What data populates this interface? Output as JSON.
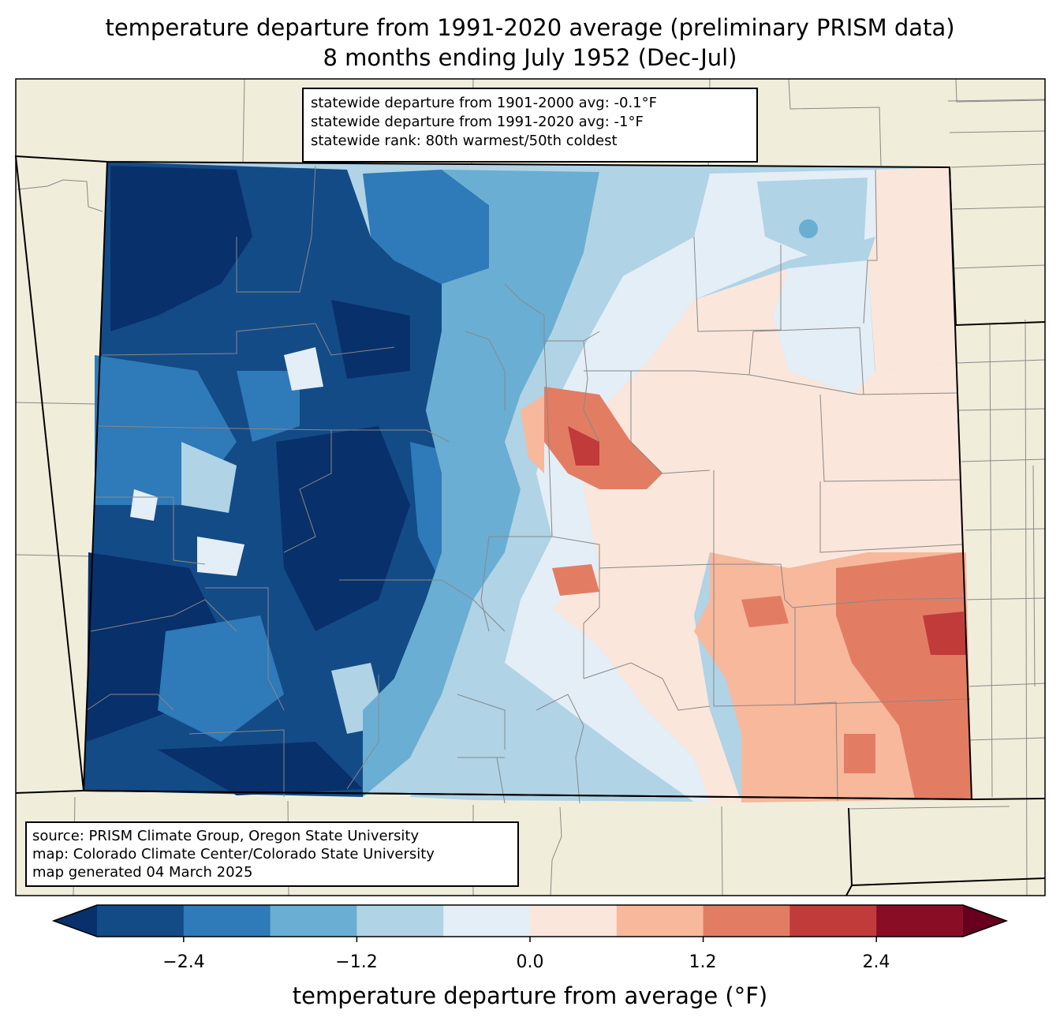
{
  "title": {
    "line1": "temperature departure from 1991-2020 average (preliminary PRISM data)",
    "line2": "8 months ending July 1952 (Dec-Jul)"
  },
  "stats": {
    "line1": "statewide departure from 1901-2000 avg: -0.1°F",
    "line2": "statewide departure from 1991-2020 avg: -1°F",
    "line3": "statewide rank: 80th warmest/50th coldest"
  },
  "source": {
    "line1": "source: PRISM Climate Group, Oregon State University",
    "line2": "map: Colorado Climate Center/Colorado State University",
    "line3": "map generated 04 March 2025"
  },
  "colorbar": {
    "label": "temperature departure from average (°F)",
    "ticks": [
      "−2.4",
      "−1.2",
      "0.0",
      "1.2",
      "2.4"
    ],
    "bins": [
      -3.0,
      -2.4,
      -1.8,
      -1.2,
      -0.6,
      0.0,
      0.6,
      1.2,
      1.8,
      2.4,
      3.0
    ],
    "colors": [
      "#134b87",
      "#2f7ab8",
      "#6aaed3",
      "#b0d3e6",
      "#e4eef6",
      "#fbe6dc",
      "#f7b89c",
      "#e27d64",
      "#c13b3b",
      "#8a0d26"
    ],
    "under_color": "#08306b",
    "over_color": "#67001f"
  },
  "colors": {
    "land": "#f0eedb",
    "county_lines": "#888888",
    "state_lines": "#000000"
  }
}
